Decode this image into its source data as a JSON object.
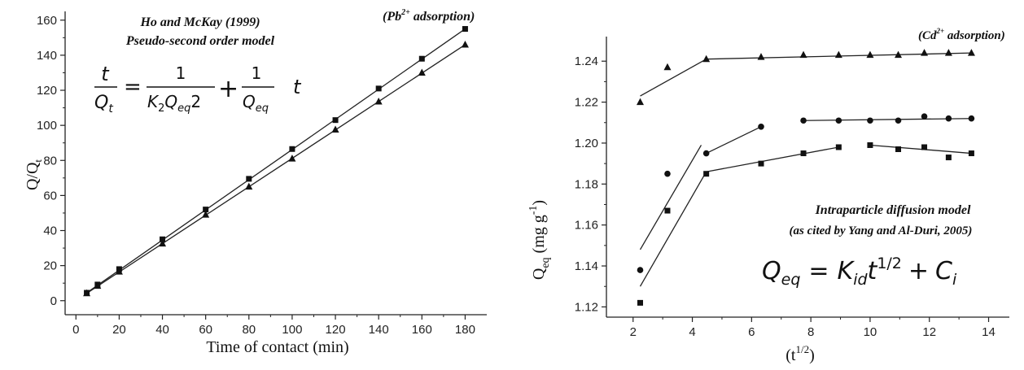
{
  "chart_data": [
    {
      "type": "line",
      "title": "",
      "annotations": {
        "line1": "Ho and McKay (1999)",
        "line2": "Pseudo-second order model",
        "species_open": "(Pb",
        "species_sup": "2+",
        "species_close": " adsorption)"
      },
      "equation": {
        "lhs_num": "t",
        "lhs_den": "Q",
        "lhs_den_sub": "t",
        "equals": "=",
        "frac1_num": "1",
        "frac1_den_a": "K",
        "frac1_den_a_sub": "2",
        "frac1_den_b": "Q",
        "frac1_den_b_sub": "eq",
        "frac1_den_c": "2",
        "plus": "+",
        "frac2_num": "1",
        "frac2_den": "Q",
        "frac2_den_sub": "eq",
        "tail": "t"
      },
      "xlabel": "Time of contact (min)",
      "ylabel_main": "Q/Q",
      "ylabel_sub": "t",
      "xlim": [
        -5,
        190
      ],
      "ylim": [
        -8,
        165
      ],
      "xticks": [
        0,
        20,
        40,
        60,
        80,
        100,
        120,
        140,
        160,
        180
      ],
      "yticks": [
        0,
        20,
        40,
        60,
        80,
        100,
        120,
        140,
        160
      ],
      "series": [
        {
          "marker": "square",
          "x": [
            5,
            10,
            20,
            40,
            60,
            80,
            100,
            120,
            140,
            160,
            180
          ],
          "y": [
            4.5,
            9.2,
            18,
            35,
            52,
            69.5,
            86.5,
            103,
            121,
            138,
            155
          ],
          "fit": [
            [
              5,
              4.5
            ],
            [
              180,
              155
            ]
          ]
        },
        {
          "marker": "triangle",
          "x": [
            5,
            10,
            20,
            40,
            60,
            80,
            100,
            120,
            140,
            160,
            180
          ],
          "y": [
            4.2,
            8.4,
            16.5,
            32.5,
            49,
            65,
            81,
            97.5,
            113.5,
            130,
            146
          ],
          "fit": [
            [
              5,
              4.2
            ],
            [
              180,
              146
            ]
          ]
        }
      ],
      "grid": false
    },
    {
      "type": "line",
      "title": "",
      "annotations": {
        "species_open": "(Cd",
        "species_sup": "2+",
        "species_close": " adsorption)",
        "model_line1": "Intraparticle diffusion model",
        "model_line2": "(as cited by Yang and Al-Duri, 2005)"
      },
      "equation": {
        "q": "Q",
        "q_sub": "eq",
        "equals": "=",
        "k": "K",
        "k_sub": "id",
        "t": "t",
        "t_sup": "1/2",
        "plus": "+",
        "c": "C",
        "c_sub": "i"
      },
      "xlabel_main": "(t",
      "xlabel_sup": "1/2",
      "xlabel_close": ")",
      "ylabel_main": "Q",
      "ylabel_sub": "eq",
      "ylabel_unit": " (mg g",
      "ylabel_unit_sup": "-1",
      "ylabel_unit_close": ")",
      "xlim": [
        1.1,
        14.7
      ],
      "ylim": [
        1.115,
        1.252
      ],
      "xticks": [
        2,
        4,
        6,
        8,
        10,
        12,
        14
      ],
      "yticks": [
        1.12,
        1.14,
        1.16,
        1.18,
        1.2,
        1.22,
        1.24
      ],
      "ytick_labels": [
        "1.12",
        "1.14",
        "1.16",
        "1.18",
        "1.20",
        "1.22",
        "1.24"
      ],
      "series": [
        {
          "marker": "triangle",
          "x": [
            2.24,
            3.16,
            4.47,
            6.32,
            7.75,
            8.94,
            10.0,
            10.95,
            11.83,
            12.65,
            13.42
          ],
          "y": [
            1.22,
            1.237,
            1.241,
            1.242,
            1.243,
            1.243,
            1.243,
            1.243,
            1.244,
            1.244,
            1.244
          ],
          "fit": [
            [
              [
                2.24,
                1.223
              ],
              [
                4.47,
                1.241
              ]
            ],
            [
              [
                4.47,
                1.241
              ],
              [
                13.42,
                1.244
              ]
            ]
          ]
        },
        {
          "marker": "circle",
          "x": [
            2.24,
            3.16,
            4.47,
            6.32,
            7.75,
            8.94,
            10.0,
            10.95,
            11.83,
            12.65,
            13.42
          ],
          "y": [
            1.138,
            1.185,
            1.195,
            1.208,
            1.211,
            1.211,
            1.211,
            1.211,
            1.213,
            1.212,
            1.212
          ],
          "fit": [
            [
              [
                2.24,
                1.148
              ],
              [
                4.3,
                1.199
              ]
            ],
            [
              [
                4.47,
                1.195
              ],
              [
                6.32,
                1.208
              ]
            ],
            [
              [
                7.75,
                1.211
              ],
              [
                13.42,
                1.212
              ]
            ]
          ]
        },
        {
          "marker": "square",
          "x": [
            2.24,
            3.16,
            4.47,
            6.32,
            7.75,
            8.94,
            10.0,
            10.95,
            11.83,
            12.65,
            13.42
          ],
          "y": [
            1.122,
            1.167,
            1.185,
            1.19,
            1.195,
            1.198,
            1.199,
            1.197,
            1.198,
            1.193,
            1.195
          ],
          "fit": [
            [
              [
                2.24,
                1.13
              ],
              [
                4.47,
                1.186
              ]
            ],
            [
              [
                4.47,
                1.186
              ],
              [
                8.94,
                1.198
              ]
            ],
            [
              [
                10.0,
                1.199
              ],
              [
                13.42,
                1.195
              ]
            ]
          ]
        }
      ],
      "grid": false
    }
  ]
}
